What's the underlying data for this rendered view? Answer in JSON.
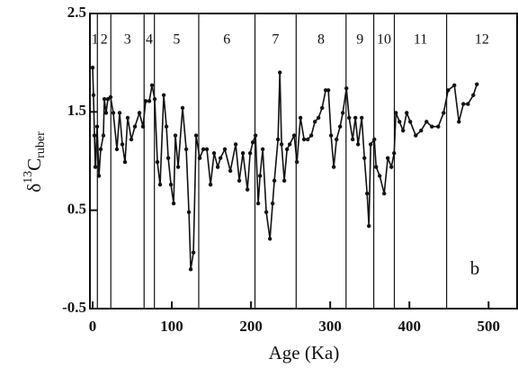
{
  "chart_data": {
    "type": "line",
    "x_label": "Age (Ka)",
    "y_label": {
      "prefix": "δ",
      "sup": "13",
      "main": "C",
      "sub": "ruber"
    },
    "panel_label": "b",
    "xlim": [
      -3.4,
      536
    ],
    "xticks": [
      0,
      100,
      200,
      300,
      400,
      500
    ],
    "ylim": [
      -0.5,
      2.5
    ],
    "yticks": [
      -0.5,
      0.5,
      1.5,
      2.5
    ],
    "stage_boundaries": [
      6,
      23,
      65,
      78,
      134,
      205,
      257,
      320,
      355,
      381,
      447
    ],
    "stage_labels": [
      "1",
      "2",
      "3",
      "4",
      "5",
      "6",
      "7",
      "8",
      "9",
      "10",
      "11",
      "12"
    ],
    "color": "#111111",
    "series": [
      {
        "x": [
          0,
          1.1,
          2.3,
          3.4,
          5.7,
          8,
          10.2,
          13.6,
          14.8,
          17,
          19.3,
          22.7,
          26.1,
          30.7,
          34.1,
          37.5,
          40.9,
          44.3,
          48.9,
          53.4,
          59.1,
          63.6,
          67,
          71.6,
          75,
          78.4,
          81.8,
          85.2,
          89.8,
          93.2,
          95.5,
          98.9,
          102.3,
          104.5,
          108,
          113.6,
          118.2,
          121.6,
          123.9,
          127.3,
          130.7,
          135.2,
          139.8,
          144.3,
          148.9,
          153.4,
          158,
          161.4,
          167,
          173.9,
          180.7,
          185.2,
          189.8,
          195.5,
          198.9,
          202.3,
          205.7,
          209.1,
          211.4,
          214.8,
          219.3,
          223.9,
          227.3,
          229.5,
          234.1,
          236.4,
          238.6,
          242,
          245.5,
          248.9,
          254.5,
          258,
          262.5,
          267,
          271.6,
          276.1,
          280.7,
          285.2,
          289.8,
          294.3,
          297.7,
          301.1,
          304.5,
          308,
          312.5,
          315.9,
          320.5,
          323.9,
          328.4,
          331.8,
          335.2,
          339.8,
          343.2,
          346.6,
          348.9,
          351.1,
          355.7,
          358,
          362.5,
          368.2,
          372.7,
          377.3,
          380.7,
          383,
          387.5,
          392,
          396.6,
          401.1,
          408,
          414.8,
          421.6,
          428.4,
          436.4,
          443.2,
          448.9,
          456.8,
          462.5,
          468.2,
          473.9,
          480.7,
          485.2
        ],
        "values": [
          1.95,
          1.67,
          1.26,
          0.94,
          1.35,
          0.85,
          1.12,
          1.26,
          1.63,
          1.49,
          1.63,
          1.65,
          1.49,
          1.12,
          1.49,
          1.17,
          0.99,
          1.44,
          1.22,
          1.35,
          1.49,
          1.35,
          1.61,
          1.61,
          1.77,
          1.63,
          0.99,
          0.76,
          1.67,
          1.35,
          1.03,
          0.76,
          0.57,
          1.26,
          0.94,
          1.54,
          1.12,
          0.48,
          -0.1,
          0.07,
          1.26,
          1.03,
          1.12,
          1.12,
          0.76,
          1.08,
          0.94,
          1.03,
          1.12,
          0.9,
          1.17,
          0.8,
          1.08,
          0.71,
          1.08,
          1.19,
          1.26,
          0.57,
          0.85,
          1.12,
          0.48,
          0.21,
          0.57,
          0.8,
          1.22,
          1.9,
          1.17,
          0.8,
          1.12,
          1.17,
          1.26,
          0.99,
          1.44,
          1.22,
          1.22,
          1.26,
          1.4,
          1.44,
          1.54,
          1.72,
          1.72,
          1.26,
          0.94,
          1.22,
          1.35,
          1.49,
          1.74,
          1.44,
          1.22,
          1.44,
          1.17,
          1.44,
          1.03,
          0.67,
          0.34,
          1.17,
          1.22,
          0.94,
          0.85,
          0.67,
          1.03,
          0.94,
          1.08,
          1.49,
          1.4,
          1.31,
          1.49,
          1.4,
          1.26,
          1.31,
          1.4,
          1.35,
          1.35,
          1.49,
          1.72,
          1.77,
          1.4,
          1.58,
          1.58,
          1.67,
          1.78
        ]
      }
    ]
  }
}
